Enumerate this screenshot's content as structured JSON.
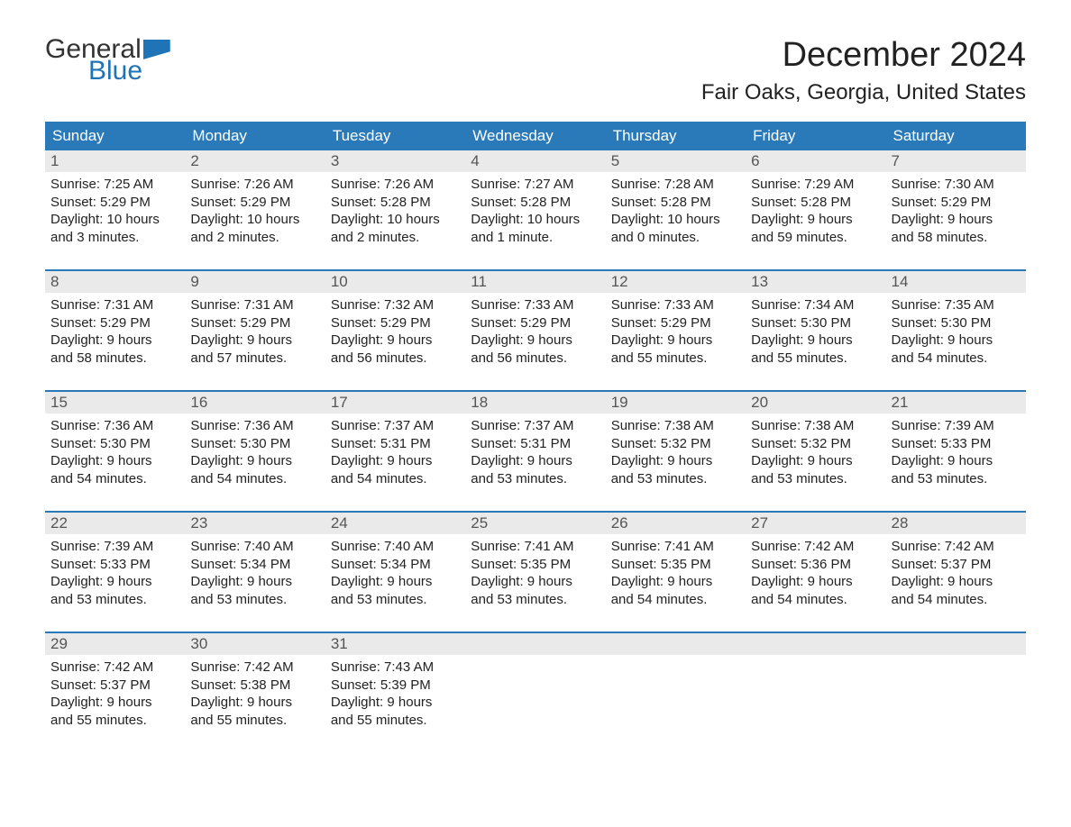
{
  "logo": {
    "general": "General",
    "blue": "Blue"
  },
  "title": "December 2024",
  "location": "Fair Oaks, Georgia, United States",
  "day_headers": [
    "Sunday",
    "Monday",
    "Tuesday",
    "Wednesday",
    "Thursday",
    "Friday",
    "Saturday"
  ],
  "colors": {
    "header_bg": "#2a7ab9",
    "header_text": "#ffffff",
    "daynum_bg": "#eaeaea",
    "border": "#2a7ab9",
    "logo_blue": "#1f73b7",
    "body_text": "#222222"
  },
  "weeks": [
    [
      {
        "n": "1",
        "sunrise": "Sunrise: 7:25 AM",
        "sunset": "Sunset: 5:29 PM",
        "dl1": "Daylight: 10 hours",
        "dl2": "and 3 minutes."
      },
      {
        "n": "2",
        "sunrise": "Sunrise: 7:26 AM",
        "sunset": "Sunset: 5:29 PM",
        "dl1": "Daylight: 10 hours",
        "dl2": "and 2 minutes."
      },
      {
        "n": "3",
        "sunrise": "Sunrise: 7:26 AM",
        "sunset": "Sunset: 5:28 PM",
        "dl1": "Daylight: 10 hours",
        "dl2": "and 2 minutes."
      },
      {
        "n": "4",
        "sunrise": "Sunrise: 7:27 AM",
        "sunset": "Sunset: 5:28 PM",
        "dl1": "Daylight: 10 hours",
        "dl2": "and 1 minute."
      },
      {
        "n": "5",
        "sunrise": "Sunrise: 7:28 AM",
        "sunset": "Sunset: 5:28 PM",
        "dl1": "Daylight: 10 hours",
        "dl2": "and 0 minutes."
      },
      {
        "n": "6",
        "sunrise": "Sunrise: 7:29 AM",
        "sunset": "Sunset: 5:28 PM",
        "dl1": "Daylight: 9 hours",
        "dl2": "and 59 minutes."
      },
      {
        "n": "7",
        "sunrise": "Sunrise: 7:30 AM",
        "sunset": "Sunset: 5:29 PM",
        "dl1": "Daylight: 9 hours",
        "dl2": "and 58 minutes."
      }
    ],
    [
      {
        "n": "8",
        "sunrise": "Sunrise: 7:31 AM",
        "sunset": "Sunset: 5:29 PM",
        "dl1": "Daylight: 9 hours",
        "dl2": "and 58 minutes."
      },
      {
        "n": "9",
        "sunrise": "Sunrise: 7:31 AM",
        "sunset": "Sunset: 5:29 PM",
        "dl1": "Daylight: 9 hours",
        "dl2": "and 57 minutes."
      },
      {
        "n": "10",
        "sunrise": "Sunrise: 7:32 AM",
        "sunset": "Sunset: 5:29 PM",
        "dl1": "Daylight: 9 hours",
        "dl2": "and 56 minutes."
      },
      {
        "n": "11",
        "sunrise": "Sunrise: 7:33 AM",
        "sunset": "Sunset: 5:29 PM",
        "dl1": "Daylight: 9 hours",
        "dl2": "and 56 minutes."
      },
      {
        "n": "12",
        "sunrise": "Sunrise: 7:33 AM",
        "sunset": "Sunset: 5:29 PM",
        "dl1": "Daylight: 9 hours",
        "dl2": "and 55 minutes."
      },
      {
        "n": "13",
        "sunrise": "Sunrise: 7:34 AM",
        "sunset": "Sunset: 5:30 PM",
        "dl1": "Daylight: 9 hours",
        "dl2": "and 55 minutes."
      },
      {
        "n": "14",
        "sunrise": "Sunrise: 7:35 AM",
        "sunset": "Sunset: 5:30 PM",
        "dl1": "Daylight: 9 hours",
        "dl2": "and 54 minutes."
      }
    ],
    [
      {
        "n": "15",
        "sunrise": "Sunrise: 7:36 AM",
        "sunset": "Sunset: 5:30 PM",
        "dl1": "Daylight: 9 hours",
        "dl2": "and 54 minutes."
      },
      {
        "n": "16",
        "sunrise": "Sunrise: 7:36 AM",
        "sunset": "Sunset: 5:30 PM",
        "dl1": "Daylight: 9 hours",
        "dl2": "and 54 minutes."
      },
      {
        "n": "17",
        "sunrise": "Sunrise: 7:37 AM",
        "sunset": "Sunset: 5:31 PM",
        "dl1": "Daylight: 9 hours",
        "dl2": "and 54 minutes."
      },
      {
        "n": "18",
        "sunrise": "Sunrise: 7:37 AM",
        "sunset": "Sunset: 5:31 PM",
        "dl1": "Daylight: 9 hours",
        "dl2": "and 53 minutes."
      },
      {
        "n": "19",
        "sunrise": "Sunrise: 7:38 AM",
        "sunset": "Sunset: 5:32 PM",
        "dl1": "Daylight: 9 hours",
        "dl2": "and 53 minutes."
      },
      {
        "n": "20",
        "sunrise": "Sunrise: 7:38 AM",
        "sunset": "Sunset: 5:32 PM",
        "dl1": "Daylight: 9 hours",
        "dl2": "and 53 minutes."
      },
      {
        "n": "21",
        "sunrise": "Sunrise: 7:39 AM",
        "sunset": "Sunset: 5:33 PM",
        "dl1": "Daylight: 9 hours",
        "dl2": "and 53 minutes."
      }
    ],
    [
      {
        "n": "22",
        "sunrise": "Sunrise: 7:39 AM",
        "sunset": "Sunset: 5:33 PM",
        "dl1": "Daylight: 9 hours",
        "dl2": "and 53 minutes."
      },
      {
        "n": "23",
        "sunrise": "Sunrise: 7:40 AM",
        "sunset": "Sunset: 5:34 PM",
        "dl1": "Daylight: 9 hours",
        "dl2": "and 53 minutes."
      },
      {
        "n": "24",
        "sunrise": "Sunrise: 7:40 AM",
        "sunset": "Sunset: 5:34 PM",
        "dl1": "Daylight: 9 hours",
        "dl2": "and 53 minutes."
      },
      {
        "n": "25",
        "sunrise": "Sunrise: 7:41 AM",
        "sunset": "Sunset: 5:35 PM",
        "dl1": "Daylight: 9 hours",
        "dl2": "and 53 minutes."
      },
      {
        "n": "26",
        "sunrise": "Sunrise: 7:41 AM",
        "sunset": "Sunset: 5:35 PM",
        "dl1": "Daylight: 9 hours",
        "dl2": "and 54 minutes."
      },
      {
        "n": "27",
        "sunrise": "Sunrise: 7:42 AM",
        "sunset": "Sunset: 5:36 PM",
        "dl1": "Daylight: 9 hours",
        "dl2": "and 54 minutes."
      },
      {
        "n": "28",
        "sunrise": "Sunrise: 7:42 AM",
        "sunset": "Sunset: 5:37 PM",
        "dl1": "Daylight: 9 hours",
        "dl2": "and 54 minutes."
      }
    ],
    [
      {
        "n": "29",
        "sunrise": "Sunrise: 7:42 AM",
        "sunset": "Sunset: 5:37 PM",
        "dl1": "Daylight: 9 hours",
        "dl2": "and 55 minutes."
      },
      {
        "n": "30",
        "sunrise": "Sunrise: 7:42 AM",
        "sunset": "Sunset: 5:38 PM",
        "dl1": "Daylight: 9 hours",
        "dl2": "and 55 minutes."
      },
      {
        "n": "31",
        "sunrise": "Sunrise: 7:43 AM",
        "sunset": "Sunset: 5:39 PM",
        "dl1": "Daylight: 9 hours",
        "dl2": "and 55 minutes."
      },
      {
        "empty": true
      },
      {
        "empty": true
      },
      {
        "empty": true
      },
      {
        "empty": true
      }
    ]
  ]
}
